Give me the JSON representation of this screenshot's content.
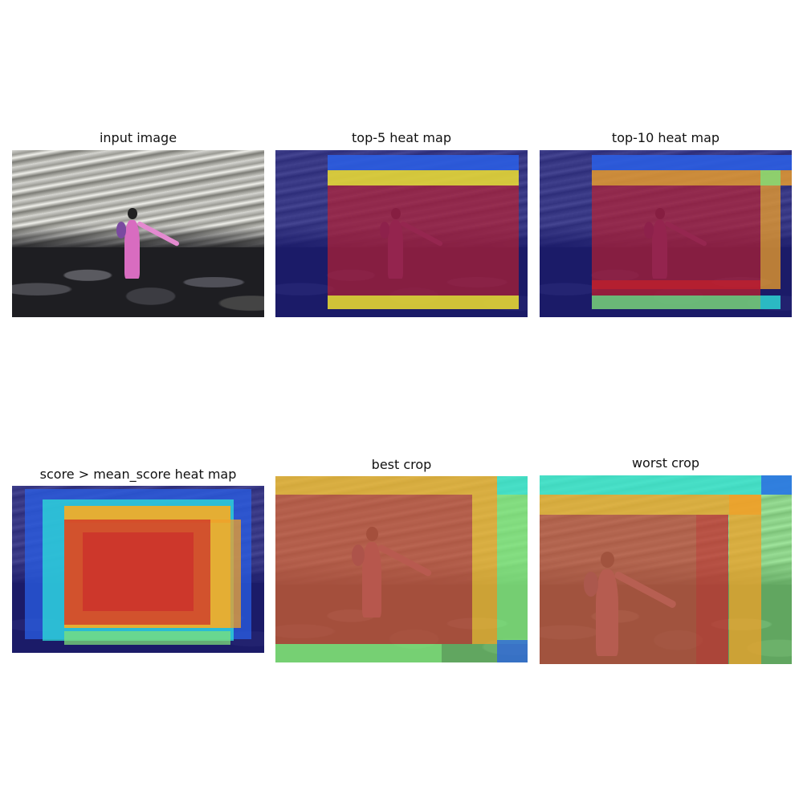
{
  "panels": [
    {
      "title": "input image"
    },
    {
      "title": "top-5 heat map"
    },
    {
      "title": "top-10 heat map"
    },
    {
      "title": "score > mean_score heat map"
    },
    {
      "title": "best crop"
    },
    {
      "title": "worst crop"
    }
  ],
  "colors": {
    "dark_blue": "#1a1a7a",
    "blue": "#2a5fe6",
    "cyan": "#2ee0d8",
    "green": "#7ee07a",
    "yellow": "#f0e030",
    "orange": "#f0a028",
    "red": "#c8202a"
  }
}
